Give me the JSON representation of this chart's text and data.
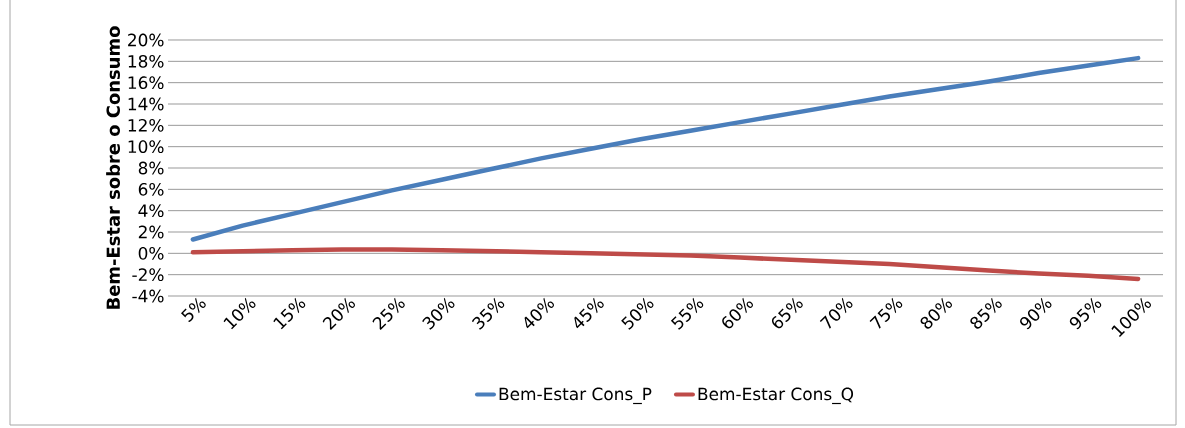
{
  "chart_data": {
    "type": "line",
    "ylabel": "Bem-Estar sobre o Consumo",
    "categories": [
      "5%",
      "10%",
      "15%",
      "20%",
      "25%",
      "30%",
      "35%",
      "40%",
      "45%",
      "50%",
      "55%",
      "60%",
      "65%",
      "70%",
      "75%",
      "80%",
      "85%",
      "90%",
      "95%",
      "100%"
    ],
    "series": [
      {
        "name": "Bem-Estar Cons_P",
        "color": "#4a7ebb",
        "values": [
          1.3,
          2.6,
          3.7,
          4.8,
          5.9,
          6.9,
          7.9,
          8.9,
          9.8,
          10.7,
          11.5,
          12.3,
          13.1,
          13.9,
          14.7,
          15.4,
          16.1,
          16.9,
          17.6,
          18.3
        ]
      },
      {
        "name": "Bem-Estar Cons_Q",
        "color": "#be4b48",
        "values": [
          0.1,
          0.2,
          0.3,
          0.35,
          0.35,
          0.3,
          0.2,
          0.1,
          0.0,
          -0.1,
          -0.2,
          -0.4,
          -0.6,
          -0.8,
          -1.0,
          -1.3,
          -1.6,
          -1.9,
          -2.1,
          -2.4
        ]
      }
    ],
    "ylim": [
      -4,
      20
    ],
    "yticks": [
      {
        "value": -4,
        "label": "-4%"
      },
      {
        "value": -2,
        "label": "-2%"
      },
      {
        "value": 0,
        "label": "0%"
      },
      {
        "value": 2,
        "label": "2%"
      },
      {
        "value": 4,
        "label": "4%"
      },
      {
        "value": 6,
        "label": "6%"
      },
      {
        "value": 8,
        "label": "8%"
      },
      {
        "value": 10,
        "label": "10%"
      },
      {
        "value": 12,
        "label": "12%"
      },
      {
        "value": 14,
        "label": "14%"
      },
      {
        "value": 16,
        "label": "16%"
      },
      {
        "value": 18,
        "label": "18%"
      },
      {
        "value": 20,
        "label": "20%"
      }
    ],
    "grid": "y",
    "legend": "bottom",
    "marker": "none",
    "line_style": "solid"
  }
}
